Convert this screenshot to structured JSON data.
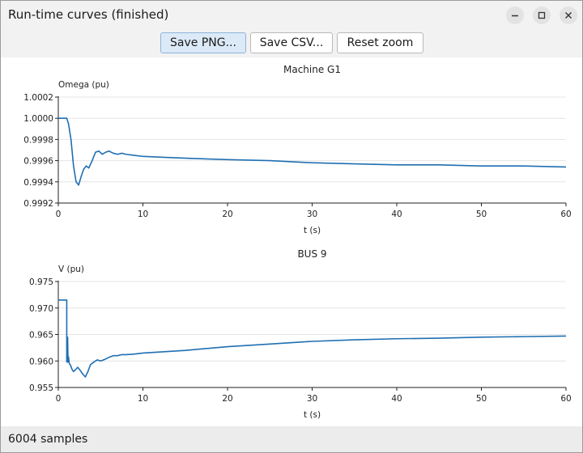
{
  "window": {
    "title": "Run-time curves (finished)"
  },
  "toolbar": {
    "save_png_label": "Save PNG...",
    "save_csv_label": "Save CSV...",
    "reset_zoom_label": "Reset zoom"
  },
  "window_controls": {
    "minimize": "minimize-icon",
    "maximize": "maximize-icon",
    "close": "close-icon"
  },
  "status": {
    "text": "6004 samples"
  },
  "colors": {
    "series": "#1f6fb2",
    "grid": "#e4e4e4",
    "axis": "#222222"
  },
  "chart_data": [
    {
      "type": "line",
      "title": "Machine G1",
      "xlabel": "t (s)",
      "ylabel": "Omega (pu)",
      "xlim": [
        0,
        60
      ],
      "ylim": [
        0.9992,
        1.0002
      ],
      "xticks": [
        "0",
        "10",
        "20",
        "30",
        "40",
        "50",
        "60"
      ],
      "yticks": [
        "0.9992",
        "0.9994",
        "0.9996",
        "0.9998",
        "1.0000",
        "1.0002"
      ],
      "grid": true,
      "series": [
        {
          "x": [
            0,
            1.0,
            1.2,
            1.5,
            1.8,
            2.1,
            2.4,
            2.7,
            3.0,
            3.3,
            3.6,
            4.0,
            4.4,
            4.8,
            5.2,
            5.6,
            6.0,
            6.5,
            7.0,
            7.5,
            8.0,
            9.0,
            10,
            13,
            16,
            20,
            25,
            30,
            35,
            40,
            45,
            50,
            55,
            60
          ],
          "y": [
            1.0,
            1.0,
            0.99995,
            0.9998,
            0.99955,
            0.9994,
            0.99937,
            0.99945,
            0.99952,
            0.99955,
            0.99953,
            0.9996,
            0.99968,
            0.99969,
            0.99966,
            0.99968,
            0.99969,
            0.99967,
            0.99966,
            0.99967,
            0.99966,
            0.99965,
            0.99964,
            0.99963,
            0.99962,
            0.99961,
            0.9996,
            0.99958,
            0.99957,
            0.99956,
            0.99956,
            0.99955,
            0.99955,
            0.99954
          ]
        }
      ]
    },
    {
      "type": "line",
      "title": "BUS 9",
      "xlabel": "t (s)",
      "ylabel": "V (pu)",
      "xlim": [
        0,
        60
      ],
      "ylim": [
        0.955,
        0.975
      ],
      "xticks": [
        "0",
        "10",
        "20",
        "30",
        "40",
        "50",
        "60"
      ],
      "yticks": [
        "0.955",
        "0.960",
        "0.965",
        "0.970",
        "0.975"
      ],
      "grid": true,
      "series": [
        {
          "x": [
            0,
            1.0,
            1.0,
            1.1,
            1.15,
            1.2,
            1.3,
            1.45,
            1.6,
            1.8,
            2.0,
            2.3,
            2.6,
            2.9,
            3.2,
            3.5,
            3.8,
            4.2,
            4.6,
            5.0,
            5.5,
            6.0,
            6.5,
            7.0,
            7.5,
            8.0,
            9.0,
            10,
            15,
            20,
            25,
            30,
            35,
            40,
            45,
            50,
            55,
            60
          ],
          "y": [
            0.9715,
            0.9715,
            0.9598,
            0.9645,
            0.9598,
            0.9608,
            0.9595,
            0.9592,
            0.9585,
            0.958,
            0.9583,
            0.9588,
            0.9582,
            0.9575,
            0.957,
            0.958,
            0.9593,
            0.9598,
            0.9602,
            0.96,
            0.9603,
            0.9607,
            0.961,
            0.961,
            0.9612,
            0.9612,
            0.9613,
            0.9615,
            0.962,
            0.9627,
            0.9632,
            0.9637,
            0.964,
            0.9642,
            0.9643,
            0.9645,
            0.9646,
            0.9647
          ]
        }
      ]
    }
  ]
}
